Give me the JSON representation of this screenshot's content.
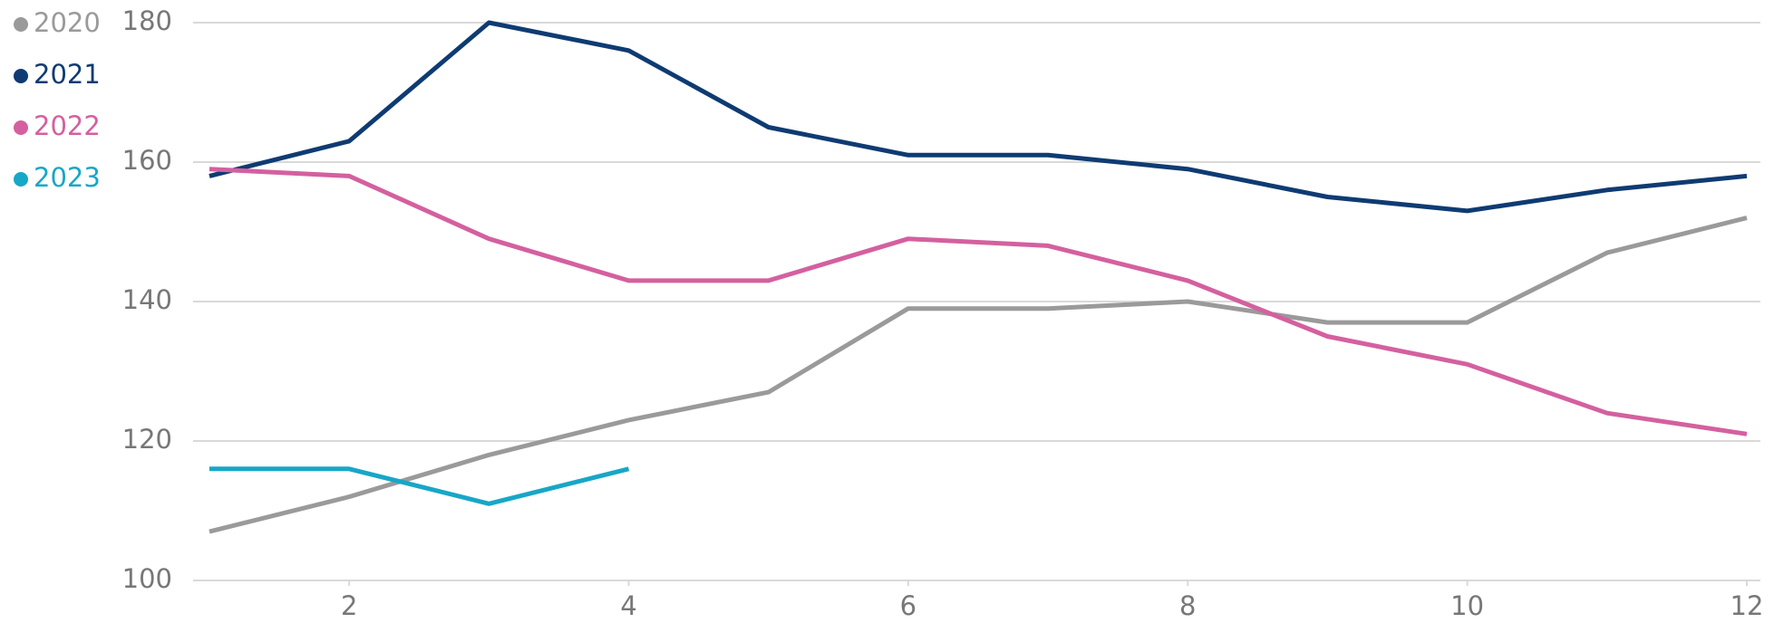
{
  "chart_data": {
    "type": "line",
    "x": [
      1,
      2,
      3,
      4,
      5,
      6,
      7,
      8,
      9,
      10,
      11,
      12
    ],
    "series": [
      {
        "name": "2020",
        "color": "#9a9a9a",
        "values": [
          107,
          112,
          118,
          123,
          127,
          139,
          139,
          140,
          137,
          137,
          147,
          152
        ]
      },
      {
        "name": "2021",
        "color": "#0e3b72",
        "values": [
          158,
          163,
          180,
          176,
          165,
          161,
          161,
          159,
          155,
          153,
          156,
          158
        ]
      },
      {
        "name": "2022",
        "color": "#d4609f",
        "values": [
          159,
          158,
          149,
          143,
          143,
          149,
          148,
          143,
          135,
          131,
          124,
          121
        ]
      },
      {
        "name": "2023",
        "color": "#17a7c7",
        "values": [
          116,
          116,
          111,
          116,
          null,
          null,
          null,
          null,
          null,
          null,
          null,
          null
        ]
      }
    ],
    "xlim": [
      1,
      12
    ],
    "xticks": [
      2,
      4,
      6,
      8,
      10,
      12
    ],
    "ylim": [
      100,
      180
    ],
    "yticks": [
      100,
      120,
      140,
      160,
      180
    ],
    "grid": true,
    "legend": "top-left"
  }
}
